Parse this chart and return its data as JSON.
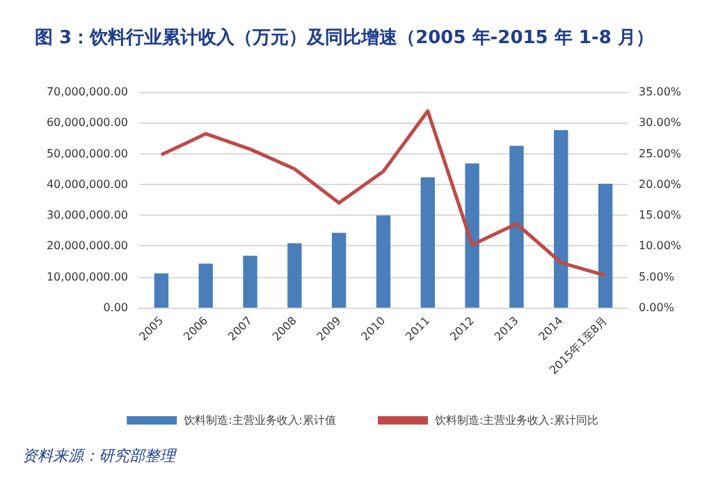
{
  "chart_data": {
    "type": "bar",
    "title": "图 3：饮料行业累计收入（万元）及同比增速（2005 年-2015 年 1-8 月）",
    "annotations": [
      "资料来源：研究部整理"
    ],
    "categories": [
      "2005",
      "2006",
      "2007",
      "2008",
      "2009",
      "2010",
      "2011",
      "2012",
      "2013",
      "2014",
      "2015年1至8月"
    ],
    "series": [
      {
        "name": "饮料制造:主营业务收入:累计值",
        "color": "#4a7ebb",
        "values": [
          11100000,
          14300000,
          16800000,
          20900000,
          24300000,
          29900000,
          42300000,
          46800000,
          52500000,
          57600000,
          40200000
        ]
      },
      {
        "name": "饮料制造:主营业务收入:累计同比",
        "type": "line",
        "axis": "y2",
        "color": "#be4b48",
        "values": [
          24.8,
          28.2,
          25.7,
          22.5,
          17.0,
          22.1,
          31.9,
          10.2,
          13.6,
          7.3,
          5.2
        ]
      }
    ],
    "ylim": [
      0,
      70000000
    ],
    "yticks": [
      {
        "value": 0,
        "label": "0.00"
      },
      {
        "value": 10000000,
        "label": "10,000,000.00"
      },
      {
        "value": 20000000,
        "label": "20,000,000.00"
      },
      {
        "value": 30000000,
        "label": "30,000,000.00"
      },
      {
        "value": 40000000,
        "label": "40,000,000.00"
      },
      {
        "value": 50000000,
        "label": "50,000,000.00"
      },
      {
        "value": 60000000,
        "label": "60,000,000.00"
      },
      {
        "value": 70000000,
        "label": "70,000,000.00"
      }
    ],
    "y2lim": [
      0,
      35
    ],
    "y2ticks": [
      {
        "value": 0,
        "label": "0.00%"
      },
      {
        "value": 5,
        "label": "5.00%"
      },
      {
        "value": 10,
        "label": "10.00%"
      },
      {
        "value": 15,
        "label": "15.00%"
      },
      {
        "value": 20,
        "label": "20.00%"
      },
      {
        "value": 25,
        "label": "25.00%"
      },
      {
        "value": 30,
        "label": "30.00%"
      },
      {
        "value": 35,
        "label": "35.00%"
      }
    ],
    "grid": "y",
    "legend": "bottom",
    "marker": "none",
    "line_style": "solid"
  }
}
